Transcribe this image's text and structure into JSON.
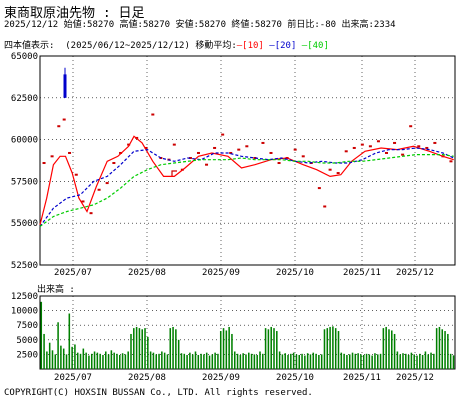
{
  "header": {
    "title": "東商取原油先物 : 日足",
    "date": "2025/12/12",
    "open_label": "始値:",
    "open": "58270",
    "high_label": "高値:",
    "high": "58270",
    "low_label": "安値:",
    "low": "58270",
    "close_label": "終値:",
    "close": "58270",
    "change_label": "前日比:",
    "change": "-80",
    "volume_label": "出来高:",
    "volume": "2334"
  },
  "legend": {
    "prefix": "四本値表示:",
    "period": "(2025/06/12~2025/12/12)",
    "ma_label": "移動平均:",
    "ma_items": [
      {
        "label": "[10]",
        "color": "#ff0000"
      },
      {
        "label": "[20]",
        "color": "#0000cc"
      },
      {
        "label": "[40]",
        "color": "#00cc00"
      }
    ]
  },
  "volume_title": "出来高 :",
  "copyright": "COPYRIGHT(C) HOXSIN BUSSAN Co., LTD. All rights reserved.",
  "colors": {
    "ma10": "#ff0000",
    "ma20": "#0000cc",
    "ma40": "#00cc00",
    "candle": "#cc0000",
    "volume": "#008000"
  },
  "chart_data": [
    {
      "type": "candlestick",
      "title": "四本値表示",
      "ylim": [
        52500,
        65000
      ],
      "y_ticks": [
        "65000",
        "62500",
        "60000",
        "57500",
        "55000",
        "52500"
      ],
      "x_ticks": [
        "2025/07",
        "2025/08",
        "2025/09",
        "2025/10",
        "2025/11",
        "2025/12"
      ],
      "grid": true,
      "notable_candle": {
        "x": "2025/06 end",
        "low": 62500,
        "high": 64300
      },
      "series": [
        {
          "name": "[10]",
          "color": "#ff0000",
          "values": [
            [
              0,
              54900
            ],
            [
              5,
              56500
            ],
            [
              10,
              58500
            ],
            [
              15,
              59000
            ],
            [
              19,
              59000
            ],
            [
              24,
              58000
            ],
            [
              29,
              56500
            ],
            [
              35,
              55700
            ],
            [
              42,
              57200
            ],
            [
              50,
              58700
            ],
            [
              58,
              59000
            ],
            [
              66,
              59600
            ],
            [
              70,
              60200
            ],
            [
              76,
              59800
            ],
            [
              84,
              58700
            ],
            [
              92,
              57800
            ],
            [
              100,
              57800
            ],
            [
              108,
              58300
            ],
            [
              118,
              59000
            ],
            [
              128,
              59200
            ],
            [
              140,
              59000
            ],
            [
              150,
              58300
            ],
            [
              160,
              58500
            ],
            [
              172,
              58800
            ],
            [
              184,
              58900
            ],
            [
              196,
              58500
            ],
            [
              206,
              58200
            ],
            [
              216,
              57800
            ],
            [
              224,
              57900
            ],
            [
              232,
              58700
            ],
            [
              242,
              59300
            ],
            [
              254,
              59500
            ],
            [
              266,
              59400
            ],
            [
              278,
              59600
            ],
            [
              290,
              59300
            ],
            [
              300,
              59000
            ],
            [
              308,
              58800
            ]
          ]
        },
        {
          "name": "[20]",
          "color": "#0000cc",
          "values": [
            [
              0,
              54800
            ],
            [
              10,
              55900
            ],
            [
              20,
              56500
            ],
            [
              30,
              56700
            ],
            [
              40,
              57500
            ],
            [
              50,
              57800
            ],
            [
              60,
              58500
            ],
            [
              70,
              59300
            ],
            [
              80,
              59400
            ],
            [
              90,
              58900
            ],
            [
              100,
              58700
            ],
            [
              110,
              58900
            ],
            [
              120,
              58800
            ],
            [
              130,
              59200
            ],
            [
              140,
              59200
            ],
            [
              150,
              59000
            ],
            [
              160,
              58900
            ],
            [
              170,
              58800
            ],
            [
              180,
              58900
            ],
            [
              190,
              58700
            ],
            [
              200,
              58600
            ],
            [
              210,
              58700
            ],
            [
              220,
              58600
            ],
            [
              230,
              58600
            ],
            [
              240,
              58800
            ],
            [
              250,
              59200
            ],
            [
              260,
              59400
            ],
            [
              270,
              59400
            ],
            [
              280,
              59500
            ],
            [
              290,
              59400
            ],
            [
              300,
              59200
            ],
            [
              308,
              58900
            ]
          ]
        },
        {
          "name": "[40]",
          "color": "#00cc00",
          "values": [
            [
              0,
              54800
            ],
            [
              10,
              55400
            ],
            [
              20,
              55700
            ],
            [
              30,
              55900
            ],
            [
              40,
              56100
            ],
            [
              50,
              56500
            ],
            [
              60,
              57100
            ],
            [
              70,
              57800
            ],
            [
              80,
              58200
            ],
            [
              90,
              58500
            ],
            [
              100,
              58600
            ],
            [
              110,
              58700
            ],
            [
              120,
              58800
            ],
            [
              130,
              58800
            ],
            [
              140,
              58800
            ],
            [
              150,
              58900
            ],
            [
              160,
              58800
            ],
            [
              170,
              58800
            ],
            [
              180,
              58800
            ],
            [
              190,
              58700
            ],
            [
              200,
              58700
            ],
            [
              210,
              58600
            ],
            [
              220,
              58600
            ],
            [
              230,
              58700
            ],
            [
              240,
              58700
            ],
            [
              250,
              58800
            ],
            [
              260,
              58900
            ],
            [
              270,
              59000
            ],
            [
              280,
              59100
            ],
            [
              290,
              59100
            ],
            [
              300,
              59100
            ],
            [
              308,
              59000
            ]
          ]
        }
      ],
      "candles": [
        [
          3,
          58600
        ],
        [
          9,
          59000
        ],
        [
          14,
          60800
        ],
        [
          18,
          61200
        ],
        [
          22,
          59200
        ],
        [
          27,
          57900
        ],
        [
          32,
          56300
        ],
        [
          38,
          55600
        ],
        [
          44,
          57000
        ],
        [
          50,
          57400
        ],
        [
          55,
          58600
        ],
        [
          60,
          59200
        ],
        [
          66,
          59700
        ],
        [
          72,
          60100
        ],
        [
          79,
          59500
        ],
        [
          84,
          61500
        ],
        [
          90,
          58900
        ],
        [
          96,
          58800
        ],
        [
          100,
          59700
        ],
        [
          106,
          58200
        ],
        [
          112,
          58900
        ],
        [
          118,
          59200
        ],
        [
          124,
          58500
        ],
        [
          130,
          59500
        ],
        [
          136,
          60300
        ],
        [
          142,
          59200
        ],
        [
          148,
          59400
        ],
        [
          154,
          59600
        ],
        [
          160,
          58900
        ],
        [
          166,
          59800
        ],
        [
          172,
          59200
        ],
        [
          178,
          58600
        ],
        [
          184,
          58900
        ],
        [
          190,
          59400
        ],
        [
          196,
          59000
        ],
        [
          202,
          58600
        ],
        [
          208,
          57100
        ],
        [
          212,
          56000
        ],
        [
          216,
          58200
        ],
        [
          222,
          58000
        ],
        [
          228,
          59300
        ],
        [
          234,
          59500
        ],
        [
          240,
          59700
        ],
        [
          246,
          59600
        ],
        [
          252,
          59900
        ],
        [
          258,
          59200
        ],
        [
          264,
          59800
        ],
        [
          270,
          59100
        ],
        [
          276,
          60800
        ],
        [
          282,
          59600
        ],
        [
          288,
          59500
        ],
        [
          294,
          59800
        ],
        [
          300,
          59000
        ],
        [
          306,
          58700
        ]
      ]
    },
    {
      "type": "bar",
      "title": "出来高",
      "ylim": [
        0,
        12500
      ],
      "y_ticks": [
        "12500",
        "10000",
        "7500",
        "5000",
        "2500"
      ],
      "x_ticks": [
        "2025/07",
        "2025/08",
        "2025/09",
        "2025/10",
        "2025/11",
        "2025/12"
      ],
      "values": [
        11500,
        6000,
        3000,
        4500,
        3200,
        2500,
        8000,
        4000,
        3500,
        2500,
        9500,
        3800,
        4200,
        2800,
        2600,
        3500,
        2800,
        2300,
        2600,
        3000,
        2800,
        2600,
        2400,
        3000,
        2500,
        3200,
        2800,
        2600,
        2400,
        2700,
        2500,
        3000,
        6000,
        7000,
        7200,
        7000,
        6800,
        7000,
        5500,
        3000,
        2800,
        2500,
        2600,
        3000,
        2800,
        2500,
        7000,
        7200,
        6800,
        5000,
        2700,
        2600,
        2400,
        2800,
        2500,
        3000,
        2400,
        2600,
        2500,
        2800,
        2300,
        2500,
        2800,
        2600,
        6500,
        7000,
        6600,
        7200,
        6000,
        3000,
        2600,
        2400,
        2700,
        2500,
        2800,
        2600,
        2500,
        2400,
        3000,
        2600,
        7000,
        6800,
        7200,
        7000,
        6500,
        3000,
        2500,
        2700,
        2400,
        2600,
        2800,
        2500,
        2400,
        2600,
        2300,
        2700,
        2500,
        2800,
        2600,
        2400,
        2500,
        6800,
        7000,
        7200,
        7300,
        7000,
        6500,
        2800,
        2600,
        2400,
        2500,
        2800,
        2600,
        2700,
        2500,
        2400,
        2600,
        2500,
        2300,
        2700,
        2500,
        2600,
        7000,
        7200,
        6800,
        6600,
        6000,
        3000,
        2500,
        2700,
        2600,
        2400,
        2800,
        2500,
        2300,
        2600,
        2400,
        3000,
        2500,
        2800,
        2600,
        7000,
        7200,
        6800,
        6500,
        6000,
        2600,
        2334
      ]
    }
  ]
}
